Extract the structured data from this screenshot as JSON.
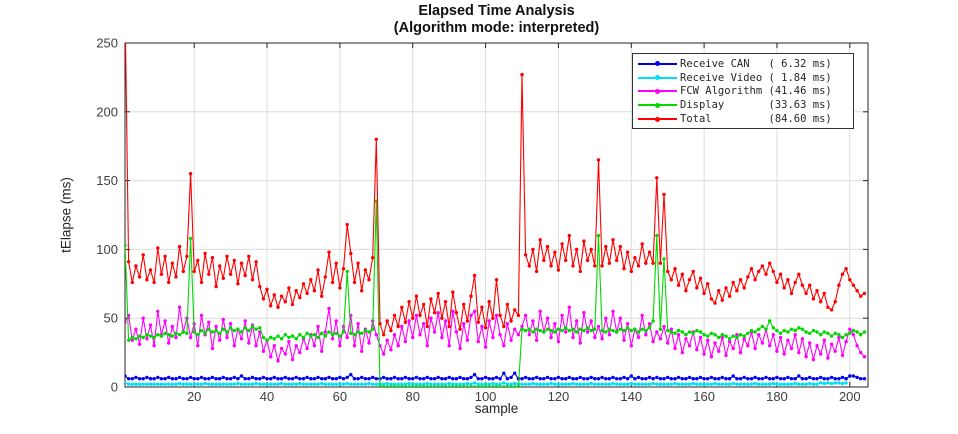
{
  "title": {
    "line1": "Elapsed Time Analysis",
    "line2": "(Algorithm mode: interpreted)"
  },
  "axes": {
    "xlabel": "sample",
    "ylabel": "tElapse (ms)"
  },
  "colors": {
    "background": "#ffffff",
    "grid": "#dcdcdc",
    "axis": "#262626",
    "tick_label": "#404040",
    "receive_can": "#0000ee",
    "receive_video": "#00e0f5",
    "fcw_algorithm": "#ff00ff",
    "display": "#00d900",
    "total": "#ff0000"
  },
  "legend": {
    "items": [
      {
        "label": "Receive CAN   ( 6.32 ms)",
        "color": "#0000ee"
      },
      {
        "label": "Receive Video ( 1.84 ms)",
        "color": "#00e0f5"
      },
      {
        "label": "FCW Algorithm (41.46 ms)",
        "color": "#ff00ff"
      },
      {
        "label": "Display       (33.63 ms)",
        "color": "#00d900"
      },
      {
        "label": "Total         (84.60 ms)",
        "color": "#ff0000"
      }
    ]
  },
  "chart_data": {
    "type": "line",
    "title": "Elapsed Time Analysis",
    "subtitle": "(Algorithm mode: interpreted)",
    "xlabel": "sample",
    "ylabel": "tElapse (ms)",
    "xlim": [
      1,
      205
    ],
    "ylim": [
      0,
      250
    ],
    "x_ticks": [
      20,
      40,
      60,
      80,
      100,
      120,
      140,
      160,
      180,
      200
    ],
    "y_ticks": [
      0,
      50,
      100,
      150,
      200,
      250
    ],
    "grid": true,
    "legend_position": "northeast",
    "x_start": 1,
    "x_step": 1,
    "n_samples": 204,
    "series": [
      {
        "name": "Receive CAN",
        "mean_ms": 6.32,
        "color": "#0000ee",
        "values": [
          8,
          6,
          6,
          7,
          6,
          6,
          7,
          6,
          6,
          7,
          6,
          6,
          7,
          6,
          6,
          7,
          6,
          6,
          7,
          6,
          6,
          7,
          6,
          6,
          7,
          6,
          6,
          7,
          6,
          6,
          7,
          6,
          8,
          6,
          6,
          7,
          6,
          6,
          7,
          6,
          6,
          7,
          6,
          6,
          7,
          6,
          6,
          7,
          6,
          6,
          7,
          6,
          6,
          7,
          6,
          6,
          7,
          6,
          6,
          7,
          6,
          7,
          9,
          6,
          6,
          7,
          6,
          6,
          7,
          6,
          6,
          7,
          6,
          6,
          7,
          6,
          6,
          7,
          6,
          6,
          7,
          6,
          6,
          7,
          6,
          6,
          7,
          6,
          6,
          7,
          6,
          6,
          7,
          6,
          6,
          7,
          9,
          6,
          6,
          7,
          6,
          6,
          7,
          6,
          10,
          6,
          7,
          10,
          6,
          6,
          7,
          6,
          6,
          7,
          6,
          6,
          7,
          6,
          6,
          7,
          6,
          6,
          7,
          6,
          6,
          7,
          6,
          6,
          7,
          6,
          6,
          7,
          6,
          6,
          7,
          6,
          6,
          7,
          6,
          8,
          6,
          7,
          6,
          6,
          7,
          6,
          7,
          6,
          6,
          7,
          6,
          6,
          7,
          6,
          6,
          7,
          6,
          6,
          7,
          6,
          6,
          7,
          6,
          6,
          7,
          6,
          6,
          8,
          6,
          6,
          7,
          6,
          6,
          7,
          6,
          6,
          7,
          6,
          6,
          7,
          6,
          6,
          7,
          6,
          6,
          8,
          6,
          6,
          7,
          6,
          6,
          7,
          6,
          6,
          7,
          6,
          6,
          7,
          6,
          8,
          8,
          7,
          6,
          6
        ]
      },
      {
        "name": "Receive Video",
        "mean_ms": 1.84,
        "color": "#00e0f5",
        "values": [
          3,
          2,
          2,
          2,
          2,
          2,
          2,
          2,
          2,
          2,
          2,
          2,
          2,
          2,
          2,
          2.5,
          2,
          2,
          2,
          2,
          2,
          2,
          2.5,
          2,
          2,
          2,
          2,
          2,
          2,
          2,
          2,
          2.5,
          2,
          2,
          2,
          2,
          2.5,
          2,
          2,
          2,
          2,
          2,
          2,
          2.5,
          2,
          2,
          2,
          2,
          2.5,
          2,
          2,
          2,
          2,
          2,
          2.5,
          2,
          2,
          2,
          2,
          2,
          2,
          2.5,
          2,
          2,
          2,
          2,
          2,
          2.5,
          2,
          2,
          2,
          2,
          2.5,
          2,
          2,
          2,
          2,
          2,
          2.5,
          2,
          2,
          2,
          2,
          2.5,
          2,
          2,
          2,
          2,
          2,
          2.5,
          2,
          2,
          2,
          2,
          2.5,
          2,
          3,
          2,
          2,
          2,
          2,
          2.5,
          2,
          2,
          3,
          2,
          2,
          2.5,
          2,
          2,
          2,
          2,
          2.5,
          2,
          2,
          2,
          2,
          2.5,
          2,
          2,
          2,
          2,
          2,
          2.5,
          2,
          2,
          2,
          2,
          2.5,
          2,
          2,
          2,
          2,
          2,
          2.5,
          2,
          2,
          2,
          2,
          2.5,
          2,
          2,
          2,
          2,
          2,
          2.5,
          2,
          2,
          2,
          2,
          2,
          2.5,
          2,
          2,
          2,
          2,
          2.5,
          2,
          2,
          2,
          2,
          2,
          2.5,
          2,
          2,
          2,
          2,
          2.5,
          2,
          2,
          2,
          2,
          2,
          2.5,
          2,
          2,
          2,
          2,
          2.5,
          2,
          2,
          2,
          2,
          2,
          2.5,
          2,
          2,
          2,
          2.5,
          2,
          2,
          3,
          2.5,
          3,
          2.5,
          3,
          3,
          2.5,
          3
        ]
      },
      {
        "name": "FCW Algorithm",
        "mean_ms": 41.46,
        "color": "#ff00ff",
        "values": [
          47,
          52,
          34,
          42,
          31,
          50,
          35,
          45,
          30,
          55,
          38,
          48,
          32,
          44,
          36,
          58,
          40,
          50,
          36,
          46,
          30,
          52,
          38,
          47,
          28,
          44,
          34,
          49,
          36,
          46,
          30,
          42,
          35,
          48,
          32,
          45,
          30,
          40,
          26,
          34,
          22,
          30,
          19,
          28,
          24,
          33,
          20,
          30,
          25,
          35,
          28,
          38,
          30,
          44,
          26,
          40,
          57,
          35,
          48,
          30,
          44,
          36,
          52,
          30,
          46,
          26,
          42,
          32,
          48,
          38,
          30,
          24,
          34,
          27,
          38,
          30,
          44,
          33,
          48,
          36,
          52,
          38,
          46,
          30,
          50,
          40,
          54,
          36,
          48,
          30,
          55,
          40,
          28,
          46,
          34,
          52,
          55,
          33,
          44,
          29,
          48,
          36,
          52,
          38,
          30,
          46,
          34,
          42,
          38,
          44,
          52,
          38,
          48,
          34,
          55,
          40,
          50,
          36,
          46,
          33,
          52,
          40,
          58,
          36,
          48,
          32,
          54,
          40,
          48,
          36,
          44,
          35,
          50,
          38,
          55,
          40,
          50,
          34,
          46,
          30,
          42,
          36,
          52,
          38,
          46,
          33,
          40,
          35,
          44,
          32,
          42,
          28,
          38,
          25,
          35,
          30,
          40,
          27,
          36,
          24,
          34,
          22,
          32,
          26,
          36,
          23,
          33,
          28,
          38,
          25,
          35,
          30,
          40,
          28,
          38,
          32,
          42,
          30,
          38,
          26,
          36,
          24,
          34,
          28,
          38,
          25,
          35,
          22,
          32,
          20,
          30,
          24,
          34,
          21,
          31,
          26,
          36,
          23,
          33,
          42,
          38,
          30,
          25,
          22
        ]
      },
      {
        "name": "Display",
        "mean_ms": 33.63,
        "color": "#00d900",
        "values": [
          103,
          34,
          36,
          35,
          37,
          36,
          38,
          37,
          36,
          38,
          37,
          39,
          38,
          37,
          39,
          38,
          40,
          39,
          108,
          40,
          38,
          41,
          39,
          42,
          40,
          41,
          39,
          42,
          40,
          43,
          41,
          42,
          40,
          43,
          41,
          44,
          42,
          43,
          36,
          34,
          36,
          35,
          37,
          35,
          38,
          36,
          37,
          35,
          38,
          36,
          39,
          37,
          38,
          36,
          39,
          37,
          40,
          38,
          39,
          37,
          40,
          84,
          39,
          38,
          40,
          39,
          41,
          40,
          42,
          135,
          0,
          0,
          0,
          0,
          0,
          0,
          0,
          0,
          0,
          0,
          0,
          0,
          0,
          0,
          0,
          0,
          0,
          0,
          0,
          0,
          0,
          0,
          0,
          0,
          0,
          0,
          0,
          0,
          0,
          0,
          0,
          0,
          0,
          0,
          0,
          0,
          0,
          0,
          0,
          42,
          41,
          42,
          40,
          42,
          41,
          40,
          42,
          41,
          40,
          42,
          41,
          43,
          41,
          42,
          40,
          42,
          41,
          43,
          41,
          42,
          110,
          41,
          40,
          42,
          41,
          40,
          42,
          41,
          43,
          41,
          42,
          40,
          42,
          41,
          43,
          48,
          110,
          42,
          93,
          41,
          40,
          39,
          41,
          40,
          38,
          40,
          39,
          41,
          40,
          38,
          37,
          39,
          38,
          36,
          38,
          37,
          35,
          37,
          36,
          38,
          37,
          39,
          41,
          40,
          42,
          44,
          42,
          48,
          43,
          41,
          39,
          41,
          40,
          42,
          41,
          43,
          42,
          40,
          39,
          41,
          40,
          38,
          40,
          39,
          37,
          39,
          38,
          36,
          38,
          39,
          41,
          40,
          38,
          40
        ]
      },
      {
        "name": "Total",
        "mean_ms": 84.6,
        "color": "#ff0000",
        "values": [
          280,
          91,
          76,
          88,
          80,
          96,
          78,
          85,
          76,
          101,
          82,
          95,
          76,
          90,
          80,
          102,
          84,
          95,
          155,
          84,
          92,
          76,
          97,
          82,
          94,
          73,
          88,
          79,
          95,
          82,
          92,
          75,
          90,
          81,
          95,
          78,
          91,
          73,
          64,
          71,
          59,
          67,
          58,
          66,
          62,
          72,
          60,
          70,
          65,
          75,
          68,
          78,
          70,
          85,
          66,
          80,
          98,
          76,
          90,
          72,
          86,
          118,
          97,
          76,
          90,
          70,
          85,
          78,
          94,
          180,
          46,
          38,
          48,
          41,
          52,
          44,
          58,
          47,
          62,
          50,
          66,
          52,
          60,
          44,
          64,
          54,
          68,
          50,
          62,
          44,
          69,
          54,
          42,
          60,
          48,
          66,
          81,
          47,
          58,
          43,
          62,
          50,
          78,
          52,
          44,
          60,
          48,
          56,
          52,
          227,
          96,
          88,
          100,
          84,
          107,
          92,
          102,
          88,
          98,
          85,
          104,
          92,
          110,
          88,
          100,
          84,
          106,
          92,
          100,
          88,
          165,
          88,
          102,
          90,
          107,
          92,
          102,
          86,
          98,
          84,
          94,
          88,
          104,
          90,
          98,
          90,
          152,
          90,
          140,
          84,
          78,
          86,
          74,
          82,
          70,
          78,
          84,
          72,
          79,
          68,
          75,
          64,
          61,
          70,
          63,
          72,
          66,
          76,
          70,
          78,
          72,
          80,
          86,
          78,
          84,
          88,
          82,
          90,
          84,
          76,
          82,
          72,
          78,
          68,
          76,
          82,
          74,
          68,
          74,
          64,
          70,
          62,
          68,
          58,
          56,
          62,
          74,
          82,
          86,
          78,
          74,
          70,
          66,
          68
        ]
      }
    ]
  }
}
